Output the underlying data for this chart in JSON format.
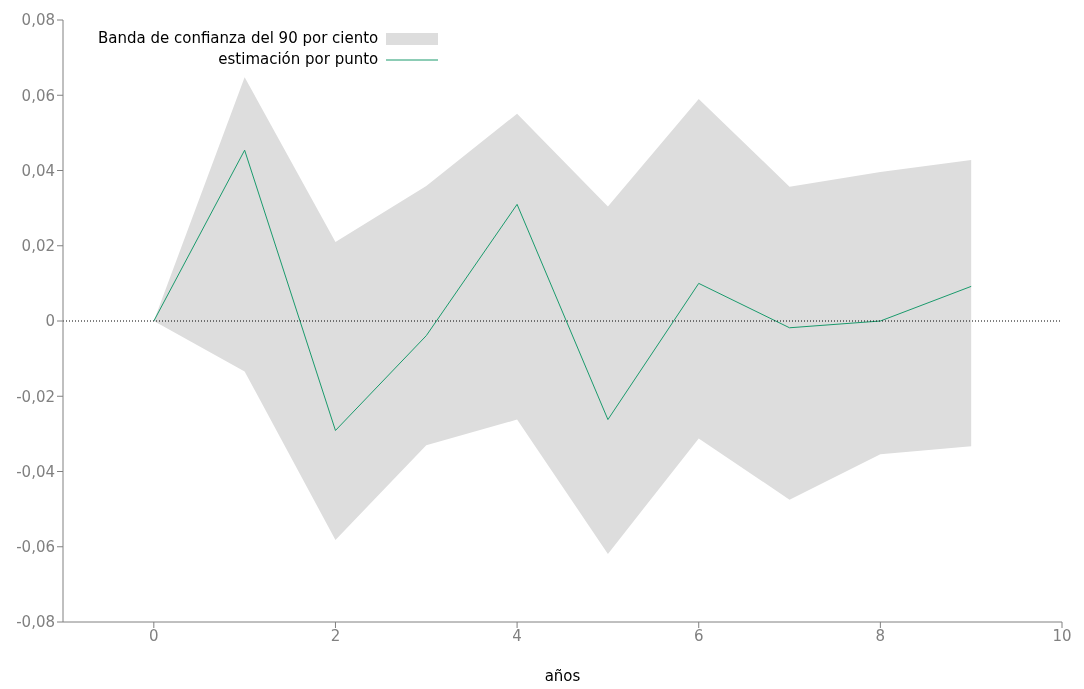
{
  "chart_data": {
    "type": "line",
    "xlabel": "años",
    "x": [
      0,
      1,
      2,
      3,
      4,
      5,
      6,
      7,
      8,
      9
    ],
    "series": [
      {
        "type": "area",
        "name": "Banda de confianza del 90 por ciento",
        "color": "#dddddd",
        "values": [
          null,
          null,
          null,
          null,
          null,
          null,
          null,
          null,
          null,
          null
        ],
        "lower": [
          0,
          -0.0134,
          -0.0582,
          -0.033,
          -0.0262,
          -0.0619,
          -0.0312,
          -0.0475,
          -0.0354,
          -0.0333
        ],
        "upper": [
          0,
          0.0648,
          0.021,
          0.0359,
          0.0551,
          0.0304,
          0.059,
          0.0357,
          0.0396,
          0.0428
        ]
      },
      {
        "name": "estimación por punto",
        "color": "#1a9a6c",
        "values": [
          0,
          0.0454,
          -0.0291,
          -0.0039,
          0.031,
          -0.0262,
          0.01,
          -0.0018,
          0,
          0.0092
        ]
      }
    ],
    "xlim": [
      -1,
      10
    ],
    "xticks": [
      0,
      2,
      4,
      6,
      8,
      10
    ],
    "ylim": [
      -0.08,
      0.08
    ],
    "yticks": [
      {
        "value": -0.08,
        "label": "-0,08"
      },
      {
        "value": -0.06,
        "label": "-0,06"
      },
      {
        "value": -0.04,
        "label": "-0,04"
      },
      {
        "value": -0.02,
        "label": "-0,02"
      },
      0,
      {
        "value": 0.02,
        "label": "0,02"
      },
      {
        "value": 0.04,
        "label": "0,04"
      },
      {
        "value": 0.06,
        "label": "0,06"
      },
      {
        "value": 0.08,
        "label": "0,08"
      }
    ],
    "ref_lines": [
      {
        "axis": "y",
        "value": 0,
        "color": "#000000",
        "line_style": "dotted"
      }
    ],
    "legend": "top left",
    "grid": false,
    "marker": "none"
  }
}
